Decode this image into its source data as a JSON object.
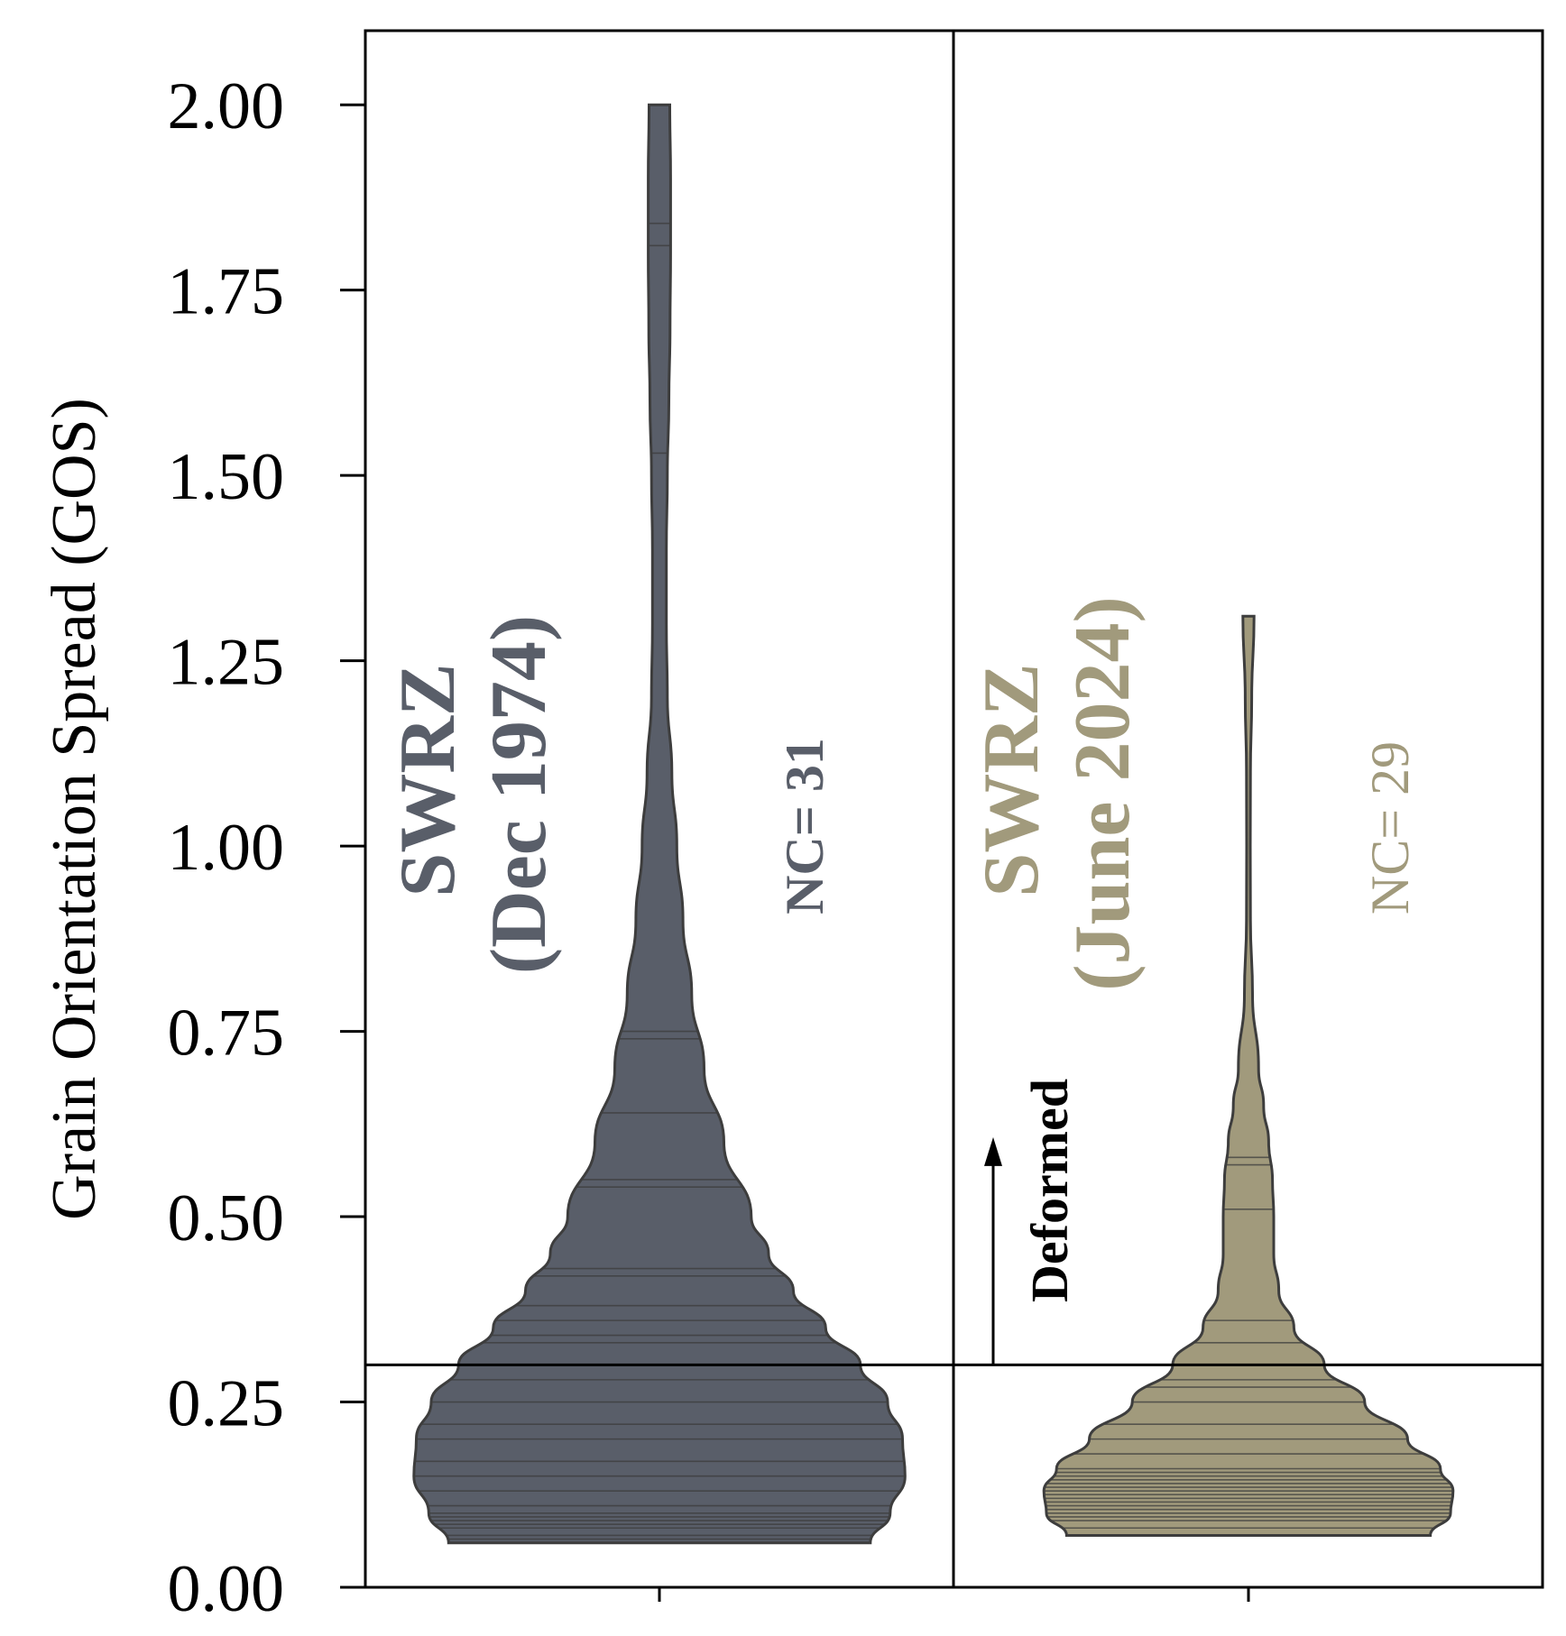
{
  "chart_data": {
    "type": "violin",
    "ylabel": "Grain Orientation Spread (GOS)",
    "ylim": [
      0,
      2.1
    ],
    "yticks": [
      "0.00",
      "0.25",
      "0.50",
      "0.75",
      "1.00",
      "1.25",
      "1.50",
      "1.75",
      "2.00"
    ],
    "ytick_values": [
      0,
      0.25,
      0.5,
      0.75,
      1.0,
      1.25,
      1.5,
      1.75,
      2.0
    ],
    "threshold": 0.3,
    "threshold_label": "Deformed",
    "series": [
      {
        "name": "SWRZ",
        "subname": "(Dec 1974)",
        "count_label": "NC= 31",
        "color": "#595e69",
        "min": 0.06,
        "max": 2.0,
        "density": [
          [
            0.06,
            0.85
          ],
          [
            0.1,
            0.93
          ],
          [
            0.15,
            0.99
          ],
          [
            0.2,
            0.98
          ],
          [
            0.25,
            0.92
          ],
          [
            0.3,
            0.81
          ],
          [
            0.35,
            0.67
          ],
          [
            0.4,
            0.54
          ],
          [
            0.45,
            0.44
          ],
          [
            0.5,
            0.37
          ],
          [
            0.6,
            0.26
          ],
          [
            0.7,
            0.18
          ],
          [
            0.8,
            0.13
          ],
          [
            0.9,
            0.095
          ],
          [
            1.0,
            0.07
          ],
          [
            1.1,
            0.05
          ],
          [
            1.2,
            0.032
          ],
          [
            1.3,
            0.028
          ],
          [
            1.4,
            0.028
          ],
          [
            1.5,
            0.032
          ],
          [
            1.6,
            0.038
          ],
          [
            1.7,
            0.043
          ],
          [
            1.8,
            0.045
          ],
          [
            1.9,
            0.045
          ],
          [
            2.0,
            0.042
          ]
        ],
        "points": [
          2.0,
          1.84,
          1.81,
          1.53,
          0.75,
          0.74,
          0.64,
          0.55,
          0.54,
          0.43,
          0.42,
          0.38,
          0.36,
          0.34,
          0.33,
          0.3,
          0.28,
          0.25,
          0.22,
          0.2,
          0.17,
          0.15,
          0.13,
          0.11,
          0.1,
          0.095,
          0.09,
          0.085,
          0.08,
          0.07,
          0.065
        ]
      },
      {
        "name": "SWRZ",
        "subname": "(June 2024)",
        "count_label": "NC= 29",
        "color": "#a19a7c",
        "min": 0.07,
        "max": 1.31,
        "density": [
          [
            0.07,
            0.72
          ],
          [
            0.1,
            0.8
          ],
          [
            0.13,
            0.81
          ],
          [
            0.16,
            0.76
          ],
          [
            0.2,
            0.63
          ],
          [
            0.25,
            0.46
          ],
          [
            0.3,
            0.3
          ],
          [
            0.35,
            0.18
          ],
          [
            0.4,
            0.12
          ],
          [
            0.45,
            0.1
          ],
          [
            0.5,
            0.1
          ],
          [
            0.55,
            0.095
          ],
          [
            0.6,
            0.08
          ],
          [
            0.65,
            0.06
          ],
          [
            0.7,
            0.04
          ],
          [
            0.8,
            0.016
          ],
          [
            0.9,
            0.008
          ],
          [
            1.0,
            0.007
          ],
          [
            1.1,
            0.008
          ],
          [
            1.2,
            0.013
          ],
          [
            1.31,
            0.022
          ]
        ],
        "points": [
          1.31,
          0.58,
          0.57,
          0.51,
          0.36,
          0.33,
          0.3,
          0.28,
          0.27,
          0.25,
          0.22,
          0.2,
          0.18,
          0.16,
          0.155,
          0.15,
          0.145,
          0.14,
          0.135,
          0.13,
          0.125,
          0.12,
          0.115,
          0.11,
          0.105,
          0.1,
          0.095,
          0.09,
          0.08
        ]
      }
    ]
  }
}
